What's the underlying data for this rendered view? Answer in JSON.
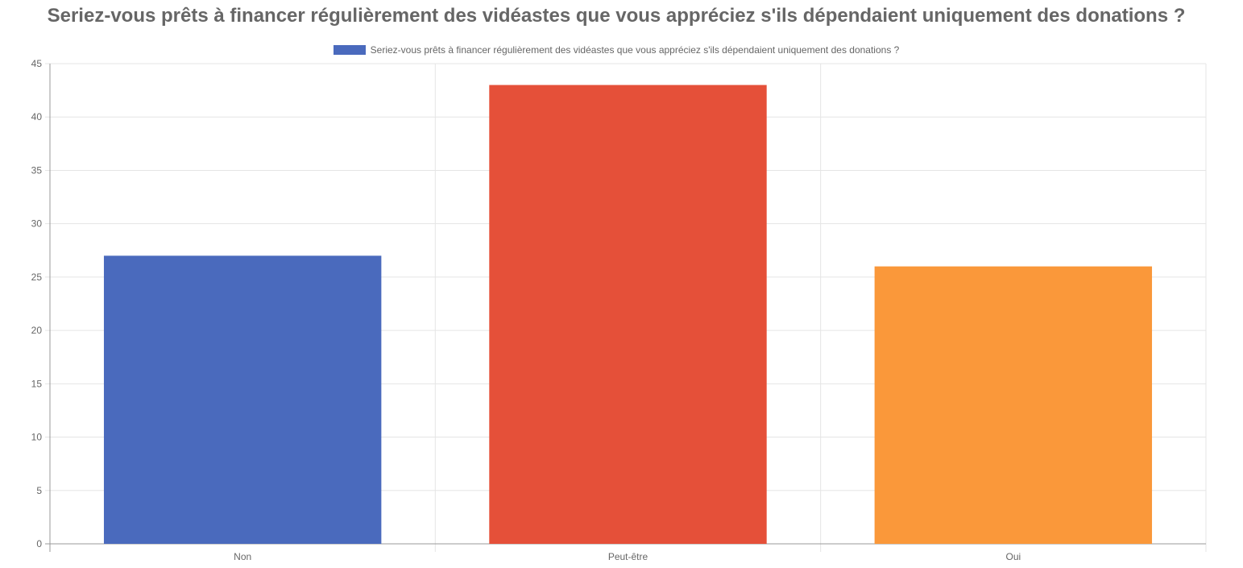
{
  "chart_data": {
    "type": "bar",
    "title": "Seriez-vous prêts à financer régulièrement des vidéastes que vous appréciez s'ils dépendaient uniquement des donations ?",
    "categories": [
      "Non",
      "Peut-être",
      "Oui"
    ],
    "series": [
      {
        "name": "Seriez-vous prêts à financer régulièrement des vidéastes que vous appréciez s'ils dépendaient uniquement des donations ?",
        "values": [
          27,
          43,
          26
        ],
        "colors": [
          "#4a6abd",
          "#e55039",
          "#fa983a"
        ]
      }
    ],
    "ylim": [
      0,
      45
    ],
    "yticks": [
      "0",
      "5",
      "10",
      "15",
      "20",
      "25",
      "30",
      "35",
      "40",
      "45"
    ],
    "grid": true,
    "legend_position": "top",
    "legend_color": "#4a6abd"
  }
}
